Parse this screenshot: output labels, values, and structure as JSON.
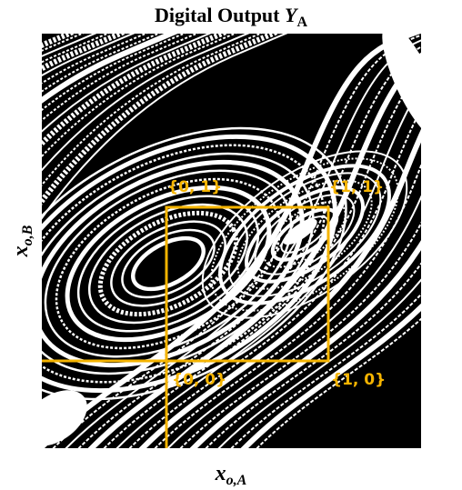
{
  "title": {
    "text": "Digital Output",
    "symbol": "Y",
    "subscript": "A"
  },
  "x_label": {
    "symbol": "x",
    "subscript": "o,A"
  },
  "y_label": {
    "symbol": "x",
    "subscript": "o,B"
  },
  "corners": {
    "top_left": "{0, 1}",
    "top_right": "{1, 1}",
    "bottom_left": "{0, 0}",
    "bottom_right": "{1, 0}"
  }
}
